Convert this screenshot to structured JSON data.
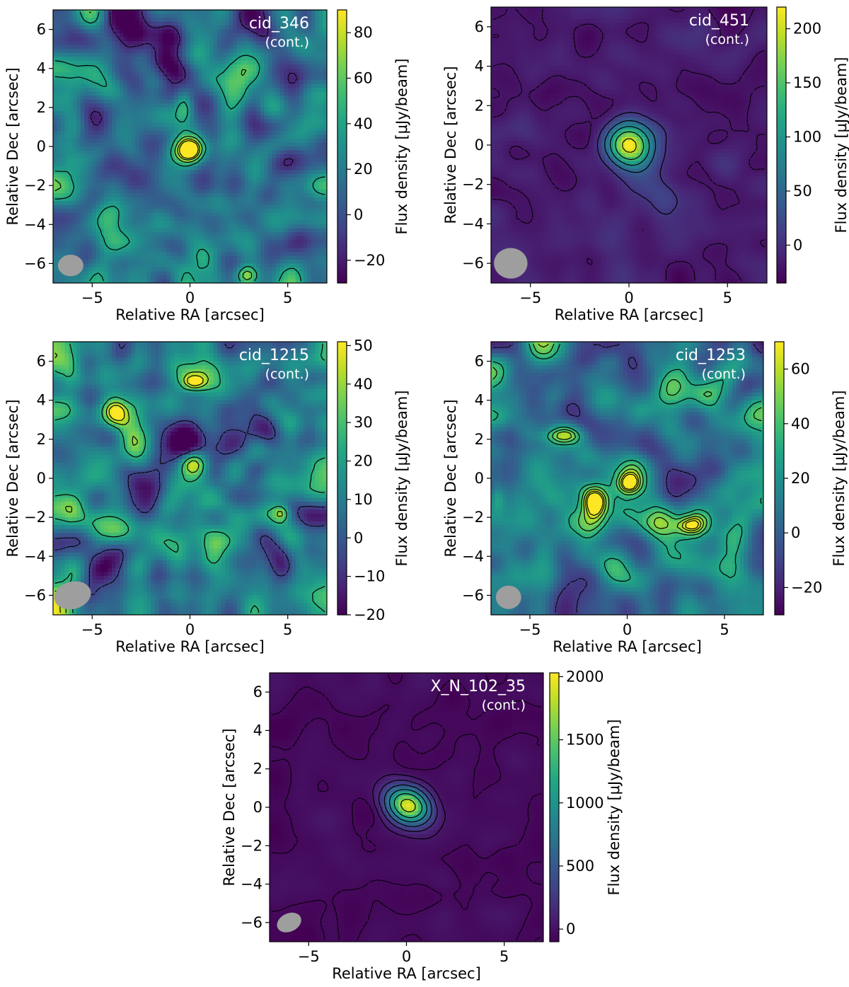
{
  "colormap": "viridis",
  "colors": {
    "contour": "#000000",
    "beam": "#9e9e9e",
    "panel_text": "#ffffff"
  },
  "chart_data": [
    {
      "type": "heatmap",
      "title": "cid_346",
      "subtitle": "(cont.)",
      "xlabel": "Relative RA [arcsec]",
      "ylabel": "Relative Dec [arcsec]",
      "colorbar_label": "Flux density [μJy/beam]",
      "xlim": [
        -7,
        7
      ],
      "ylim": [
        -7,
        7
      ],
      "x_ticks": [
        -5,
        0,
        5
      ],
      "x_tick_labels": [
        "−5",
        "0",
        "5"
      ],
      "y_ticks": [
        -6,
        -4,
        -2,
        0,
        2,
        4,
        6
      ],
      "y_tick_labels": [
        "−6",
        "−4",
        "−2",
        "0",
        "2",
        "4",
        "6"
      ],
      "clim": [
        -30,
        90
      ],
      "cbar_ticks": [
        -20,
        0,
        20,
        40,
        60,
        80
      ],
      "cbar_tick_labels": [
        "−20",
        "0",
        "20",
        "40",
        "60",
        "80"
      ],
      "background_level": 15,
      "noise_amplitude": 30,
      "noise_seed": 11,
      "sources": [
        {
          "x": 0.0,
          "y": -0.2,
          "peak": 88,
          "sigma_x": 0.55,
          "sigma_y": 0.5,
          "angle": 0
        },
        {
          "x": -0.3,
          "y": 2.1,
          "peak": 45,
          "sigma_x": 0.35,
          "sigma_y": 0.6,
          "angle": 0
        },
        {
          "x": 2.9,
          "y": -6.6,
          "peak": 55,
          "sigma_x": 0.4,
          "sigma_y": 0.35,
          "angle": 0
        }
      ],
      "contour_levels": [
        40,
        60,
        75,
        85
      ],
      "negative_contour_levels": [
        -15
      ],
      "beam": {
        "x": -6.1,
        "y": -6.1,
        "major": 1.3,
        "minor": 1.1,
        "angle": 0
      }
    },
    {
      "type": "heatmap",
      "title": "cid_451",
      "subtitle": "(cont.)",
      "xlabel": "Relative RA [arcsec]",
      "ylabel": "Relative Dec [arcsec]",
      "colorbar_label": "Flux density [μJy/beam]",
      "xlim": [
        -7,
        7
      ],
      "ylim": [
        -7,
        7
      ],
      "x_ticks": [
        -5,
        0,
        5
      ],
      "x_tick_labels": [
        "−5",
        "0",
        "5"
      ],
      "y_ticks": [
        -6,
        -4,
        -2,
        0,
        2,
        4,
        6
      ],
      "y_tick_labels": [
        "−6",
        "−4",
        "−2",
        "0",
        "2",
        "4",
        "6"
      ],
      "clim": [
        -35,
        220
      ],
      "cbar_ticks": [
        0,
        50,
        100,
        150,
        200
      ],
      "cbar_tick_labels": [
        "0",
        "50",
        "100",
        "150",
        "200"
      ],
      "background_level": -15,
      "noise_amplitude": 12,
      "noise_seed": 23,
      "sources": [
        {
          "x": 0.0,
          "y": 0.0,
          "peak": 230,
          "sigma_x": 0.75,
          "sigma_y": 0.75,
          "angle": 0
        },
        {
          "x": 1.0,
          "y": -1.6,
          "peak": 18,
          "sigma_x": 1.0,
          "sigma_y": 1.2,
          "angle": 0
        },
        {
          "x": 2.3,
          "y": 0.8,
          "peak": 14,
          "sigma_x": 1.0,
          "sigma_y": 0.5,
          "angle": 0
        }
      ],
      "contour_levels": [
        5,
        45,
        90,
        140,
        200
      ],
      "negative_contour_levels": [
        -20
      ],
      "beam": {
        "x": -6.0,
        "y": -6.0,
        "major": 1.7,
        "minor": 1.55,
        "angle": 0
      }
    },
    {
      "type": "heatmap",
      "title": "cid_1215",
      "subtitle": "(cont.)",
      "xlabel": "Relative RA [arcsec]",
      "ylabel": "Relative Dec [arcsec]",
      "colorbar_label": "Flux density [μJy/beam]",
      "xlim": [
        -7,
        7
      ],
      "ylim": [
        -7,
        7
      ],
      "x_ticks": [
        -5,
        0,
        5
      ],
      "x_tick_labels": [
        "−5",
        "0",
        "5"
      ],
      "y_ticks": [
        -6,
        -4,
        -2,
        0,
        2,
        4,
        6
      ],
      "y_tick_labels": [
        "−6",
        "−4",
        "−2",
        "0",
        "2",
        "4",
        "6"
      ],
      "clim": [
        -20,
        51
      ],
      "cbar_ticks": [
        -20,
        -10,
        0,
        10,
        20,
        30,
        40,
        50
      ],
      "cbar_tick_labels": [
        "−20",
        "−10",
        "0",
        "10",
        "20",
        "30",
        "40",
        "50"
      ],
      "background_level": 10,
      "noise_amplitude": 20,
      "noise_seed": 37,
      "sources": [
        {
          "x": 0.1,
          "y": 0.8,
          "peak": 48,
          "sigma_x": 0.5,
          "sigma_y": 0.45,
          "angle": 0
        },
        {
          "x": -3.8,
          "y": 3.4,
          "peak": 35,
          "sigma_x": 0.45,
          "sigma_y": 0.5,
          "angle": 0
        },
        {
          "x": 0.2,
          "y": 4.9,
          "peak": 30,
          "sigma_x": 0.45,
          "sigma_y": 0.3,
          "angle": 0
        },
        {
          "x": 4.7,
          "y": -1.8,
          "peak": 28,
          "sigma_x": 0.3,
          "sigma_y": 0.3,
          "angle": 0
        }
      ],
      "contour_levels": [
        25,
        38,
        46
      ],
      "negative_contour_levels": [
        -5
      ],
      "beam": {
        "x": -6.0,
        "y": -6.0,
        "major": 1.9,
        "minor": 1.4,
        "angle": -15
      }
    },
    {
      "type": "heatmap",
      "title": "cid_1253",
      "subtitle": "(cont.)",
      "xlabel": "Relative RA [arcsec]",
      "ylabel": "Relative Dec [arcsec]",
      "colorbar_label": "Flux density [μJy/beam]",
      "xlim": [
        -7,
        7
      ],
      "ylim": [
        -7,
        7
      ],
      "x_ticks": [
        -5,
        0,
        5
      ],
      "x_tick_labels": [
        "−5",
        "0",
        "5"
      ],
      "y_ticks": [
        -6,
        -4,
        -2,
        0,
        2,
        4,
        6
      ],
      "y_tick_labels": [
        "−6",
        "−4",
        "−2",
        "0",
        "2",
        "4",
        "6"
      ],
      "clim": [
        -30,
        70
      ],
      "cbar_ticks": [
        -20,
        0,
        20,
        40,
        60
      ],
      "cbar_tick_labels": [
        "−20",
        "0",
        "20",
        "40",
        "60"
      ],
      "background_level": 12,
      "noise_amplitude": 24,
      "noise_seed": 53,
      "sources": [
        {
          "x": -1.7,
          "y": -1.2,
          "peak": 68,
          "sigma_x": 0.5,
          "sigma_y": 0.6,
          "angle": 0
        },
        {
          "x": 0.1,
          "y": -0.3,
          "peak": 55,
          "sigma_x": 0.45,
          "sigma_y": 0.4,
          "angle": 0
        },
        {
          "x": 3.2,
          "y": -2.4,
          "peak": 35,
          "sigma_x": 0.55,
          "sigma_y": 0.35,
          "angle": 0
        },
        {
          "x": -3.3,
          "y": 2.2,
          "peak": 35,
          "sigma_x": 0.8,
          "sigma_y": 0.3,
          "angle": 0
        },
        {
          "x": -6.7,
          "y": -1.0,
          "peak": 38,
          "sigma_x": 0.35,
          "sigma_y": 0.5,
          "angle": 0
        }
      ],
      "contour_levels": [
        30,
        42,
        52,
        60,
        66
      ],
      "negative_contour_levels": [
        -12
      ],
      "beam": {
        "x": -6.1,
        "y": -6.1,
        "major": 1.3,
        "minor": 1.2,
        "angle": 0
      }
    },
    {
      "type": "heatmap",
      "title": "X_N_102_35",
      "subtitle": "(cont.)",
      "xlabel": "Relative RA [arcsec]",
      "ylabel": "Relative Dec [arcsec]",
      "colorbar_label": "Flux density [μJy/beam]",
      "xlim": [
        -7,
        7
      ],
      "ylim": [
        -7,
        7
      ],
      "x_ticks": [
        -5,
        0,
        5
      ],
      "x_tick_labels": [
        "−5",
        "0",
        "5"
      ],
      "y_ticks": [
        -6,
        -4,
        -2,
        0,
        2,
        4,
        6
      ],
      "y_tick_labels": [
        "−6",
        "−4",
        "−2",
        "0",
        "2",
        "4",
        "6"
      ],
      "clim": [
        -100,
        2030
      ],
      "cbar_ticks": [
        0,
        500,
        1000,
        1500,
        2000
      ],
      "cbar_tick_labels": [
        "0",
        "500",
        "1000",
        "1500",
        "2000"
      ],
      "background_level": -40,
      "noise_amplitude": 45,
      "noise_seed": 71,
      "sources": [
        {
          "x": 0.1,
          "y": 0.1,
          "peak": 2030,
          "sigma_x": 0.75,
          "sigma_y": 0.6,
          "angle": -30
        }
      ],
      "contour_levels": [
        40,
        200,
        450,
        800,
        1200,
        1700
      ],
      "negative_contour_levels": [
        -50
      ],
      "beam": {
        "x": -6.0,
        "y": -6.0,
        "major": 1.3,
        "minor": 0.95,
        "angle": -25
      }
    }
  ]
}
